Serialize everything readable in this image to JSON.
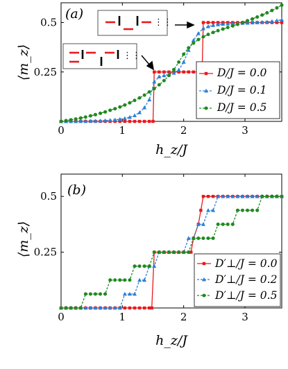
{
  "chart_data": [
    {
      "type": "line",
      "panel_label": "(a)",
      "xlabel": "h_z/J",
      "ylabel": "⟨m_z⟩",
      "xlim": [
        0,
        3.6
      ],
      "ylim": [
        0,
        0.6
      ],
      "xticks": [
        "0",
        "1",
        "2",
        "3"
      ],
      "yticks": [
        "0.25",
        "0.5"
      ],
      "legend_position": "bottom-right",
      "insets": [
        "spin-configuration-at-0.5",
        "spin-configuration-at-0.25"
      ],
      "series": [
        {
          "name": "D/J = 0.0",
          "color": "#e8191c",
          "marker": "square",
          "x": [
            0,
            0.08,
            0.16,
            0.24,
            0.32,
            0.4,
            0.48,
            0.56,
            0.64,
            0.72,
            0.8,
            0.88,
            0.96,
            1.04,
            1.12,
            1.2,
            1.28,
            1.36,
            1.44,
            1.5,
            1.52,
            1.6,
            1.68,
            1.76,
            1.84,
            1.92,
            2.0,
            2.08,
            2.16,
            2.24,
            2.3,
            2.32,
            2.4,
            2.48,
            2.56,
            2.64,
            2.72,
            2.8,
            2.88,
            2.96,
            3.04,
            3.12,
            3.2,
            3.28,
            3.36,
            3.44,
            3.52,
            3.6
          ],
          "y": [
            0,
            0,
            0,
            0,
            0,
            0,
            0,
            0,
            0,
            0,
            0,
            0,
            0,
            0,
            0,
            0,
            0,
            0,
            0,
            0,
            0.25,
            0.25,
            0.25,
            0.25,
            0.25,
            0.25,
            0.25,
            0.25,
            0.25,
            0.25,
            0.25,
            0.5,
            0.5,
            0.5,
            0.5,
            0.5,
            0.5,
            0.5,
            0.5,
            0.5,
            0.5,
            0.5,
            0.5,
            0.5,
            0.5,
            0.5,
            0.5,
            0.5
          ]
        },
        {
          "name": "D/J = 0.1",
          "color": "#2a7fd4",
          "marker": "triangle",
          "x": [
            0,
            0.08,
            0.16,
            0.24,
            0.32,
            0.4,
            0.48,
            0.56,
            0.64,
            0.72,
            0.8,
            0.88,
            0.96,
            1.04,
            1.12,
            1.2,
            1.28,
            1.36,
            1.44,
            1.52,
            1.6,
            1.68,
            1.76,
            1.84,
            1.92,
            2.0,
            2.08,
            2.16,
            2.24,
            2.32,
            2.4,
            2.48,
            2.56,
            2.64,
            2.72,
            2.8,
            2.88,
            2.96,
            3.04,
            3.12,
            3.2,
            3.28,
            3.36,
            3.44,
            3.52,
            3.6
          ],
          "y": [
            0,
            0,
            0,
            0,
            0.001,
            0.001,
            0.002,
            0.002,
            0.003,
            0.004,
            0.006,
            0.008,
            0.011,
            0.015,
            0.021,
            0.03,
            0.045,
            0.07,
            0.11,
            0.2,
            0.226,
            0.232,
            0.237,
            0.245,
            0.26,
            0.3,
            0.36,
            0.41,
            0.445,
            0.47,
            0.48,
            0.486,
            0.49,
            0.492,
            0.494,
            0.495,
            0.496,
            0.497,
            0.498,
            0.499,
            0.5,
            0.501,
            0.503,
            0.506,
            0.51,
            0.514
          ]
        },
        {
          "name": "D/J = 0.5",
          "color": "#1e8a1e",
          "marker": "circle",
          "x": [
            0,
            0.08,
            0.16,
            0.24,
            0.32,
            0.4,
            0.48,
            0.56,
            0.64,
            0.72,
            0.8,
            0.88,
            0.96,
            1.04,
            1.12,
            1.2,
            1.28,
            1.36,
            1.44,
            1.52,
            1.6,
            1.68,
            1.76,
            1.84,
            1.92,
            2.0,
            2.08,
            2.16,
            2.24,
            2.32,
            2.4,
            2.48,
            2.56,
            2.64,
            2.72,
            2.8,
            2.88,
            2.96,
            3.04,
            3.12,
            3.2,
            3.28,
            3.36,
            3.44,
            3.52,
            3.6
          ],
          "y": [
            0,
            0.004,
            0.008,
            0.012,
            0.017,
            0.022,
            0.028,
            0.034,
            0.041,
            0.048,
            0.056,
            0.064,
            0.073,
            0.083,
            0.094,
            0.106,
            0.119,
            0.133,
            0.149,
            0.166,
            0.185,
            0.206,
            0.232,
            0.262,
            0.3,
            0.34,
            0.372,
            0.396,
            0.414,
            0.428,
            0.44,
            0.45,
            0.459,
            0.467,
            0.475,
            0.483,
            0.491,
            0.5,
            0.509,
            0.518,
            0.528,
            0.538,
            0.549,
            0.561,
            0.574,
            0.588
          ]
        }
      ]
    },
    {
      "type": "line",
      "panel_label": "(b)",
      "xlabel": "h_z/J",
      "ylabel": "⟨m_z⟩",
      "xlim": [
        0,
        3.6
      ],
      "ylim": [
        0,
        0.6
      ],
      "xticks": [
        "0",
        "1",
        "2",
        "3"
      ],
      "yticks": [
        "0.25",
        "0.5"
      ],
      "legend_position": "bottom-right",
      "series": [
        {
          "name": "D′⊥/J = 0.0",
          "color": "#e8191c",
          "marker": "square",
          "x": [
            0,
            0.08,
            0.16,
            0.24,
            0.32,
            0.4,
            0.48,
            0.56,
            0.64,
            0.72,
            0.8,
            0.88,
            0.96,
            1.04,
            1.12,
            1.2,
            1.28,
            1.36,
            1.44,
            1.48,
            1.52,
            1.6,
            1.68,
            1.76,
            1.84,
            1.92,
            2.0,
            2.08,
            2.12,
            2.16,
            2.24,
            2.28,
            2.32,
            2.4,
            2.48,
            2.56,
            2.64,
            2.72,
            2.8,
            2.88,
            2.96,
            3.04,
            3.12,
            3.2,
            3.28,
            3.36,
            3.44,
            3.52,
            3.6
          ],
          "y": [
            0,
            0,
            0,
            0,
            0,
            0,
            0,
            0,
            0,
            0,
            0,
            0,
            0,
            0,
            0,
            0,
            0,
            0,
            0,
            0,
            0.25,
            0.25,
            0.25,
            0.25,
            0.25,
            0.25,
            0.25,
            0.25,
            0.25,
            0.3125,
            0.375,
            0.4375,
            0.5,
            0.5,
            0.5,
            0.5,
            0.5,
            0.5,
            0.5,
            0.5,
            0.5,
            0.5,
            0.5,
            0.5,
            0.5,
            0.5,
            0.5,
            0.5,
            0.5
          ]
        },
        {
          "name": "D′⊥/J = 0.2",
          "color": "#2a7fd4",
          "marker": "triangle",
          "x": [
            0,
            0.08,
            0.16,
            0.24,
            0.32,
            0.4,
            0.48,
            0.56,
            0.64,
            0.72,
            0.8,
            0.88,
            0.96,
            1.04,
            1.12,
            1.2,
            1.28,
            1.36,
            1.44,
            1.52,
            1.6,
            1.68,
            1.76,
            1.84,
            1.92,
            2.0,
            2.08,
            2.16,
            2.24,
            2.32,
            2.4,
            2.48,
            2.56,
            2.64,
            2.72,
            2.8,
            2.88,
            2.96,
            3.04,
            3.12,
            3.2,
            3.28,
            3.36,
            3.44,
            3.52,
            3.6
          ],
          "y": [
            0,
            0,
            0,
            0,
            0,
            0,
            0,
            0,
            0,
            0,
            0,
            0,
            0,
            0.0625,
            0.0625,
            0.0625,
            0.125,
            0.125,
            0.1875,
            0.1875,
            0.25,
            0.25,
            0.25,
            0.25,
            0.25,
            0.25,
            0.3125,
            0.3125,
            0.375,
            0.375,
            0.4375,
            0.4375,
            0.5,
            0.5,
            0.5,
            0.5,
            0.5,
            0.5,
            0.5,
            0.5,
            0.5,
            0.5,
            0.5,
            0.5,
            0.5,
            0.5
          ]
        },
        {
          "name": "D′⊥/J = 0.5",
          "color": "#1e8a1e",
          "marker": "circle",
          "x": [
            0,
            0.08,
            0.16,
            0.24,
            0.32,
            0.4,
            0.48,
            0.56,
            0.64,
            0.72,
            0.8,
            0.88,
            0.96,
            1.04,
            1.12,
            1.2,
            1.28,
            1.36,
            1.44,
            1.52,
            1.6,
            1.68,
            1.76,
            1.84,
            1.92,
            2.0,
            2.08,
            2.16,
            2.24,
            2.32,
            2.4,
            2.48,
            2.56,
            2.64,
            2.72,
            2.8,
            2.88,
            2.96,
            3.04,
            3.12,
            3.2,
            3.28,
            3.36,
            3.44,
            3.52,
            3.6
          ],
          "y": [
            0,
            0,
            0,
            0,
            0,
            0.0625,
            0.0625,
            0.0625,
            0.0625,
            0.0625,
            0.125,
            0.125,
            0.125,
            0.125,
            0.125,
            0.1875,
            0.1875,
            0.1875,
            0.1875,
            0.25,
            0.25,
            0.25,
            0.25,
            0.25,
            0.25,
            0.25,
            0.25,
            0.3125,
            0.3125,
            0.3125,
            0.3125,
            0.3125,
            0.375,
            0.375,
            0.375,
            0.375,
            0.4375,
            0.4375,
            0.4375,
            0.4375,
            0.4375,
            0.5,
            0.5,
            0.5,
            0.5,
            0.5
          ]
        }
      ]
    }
  ]
}
